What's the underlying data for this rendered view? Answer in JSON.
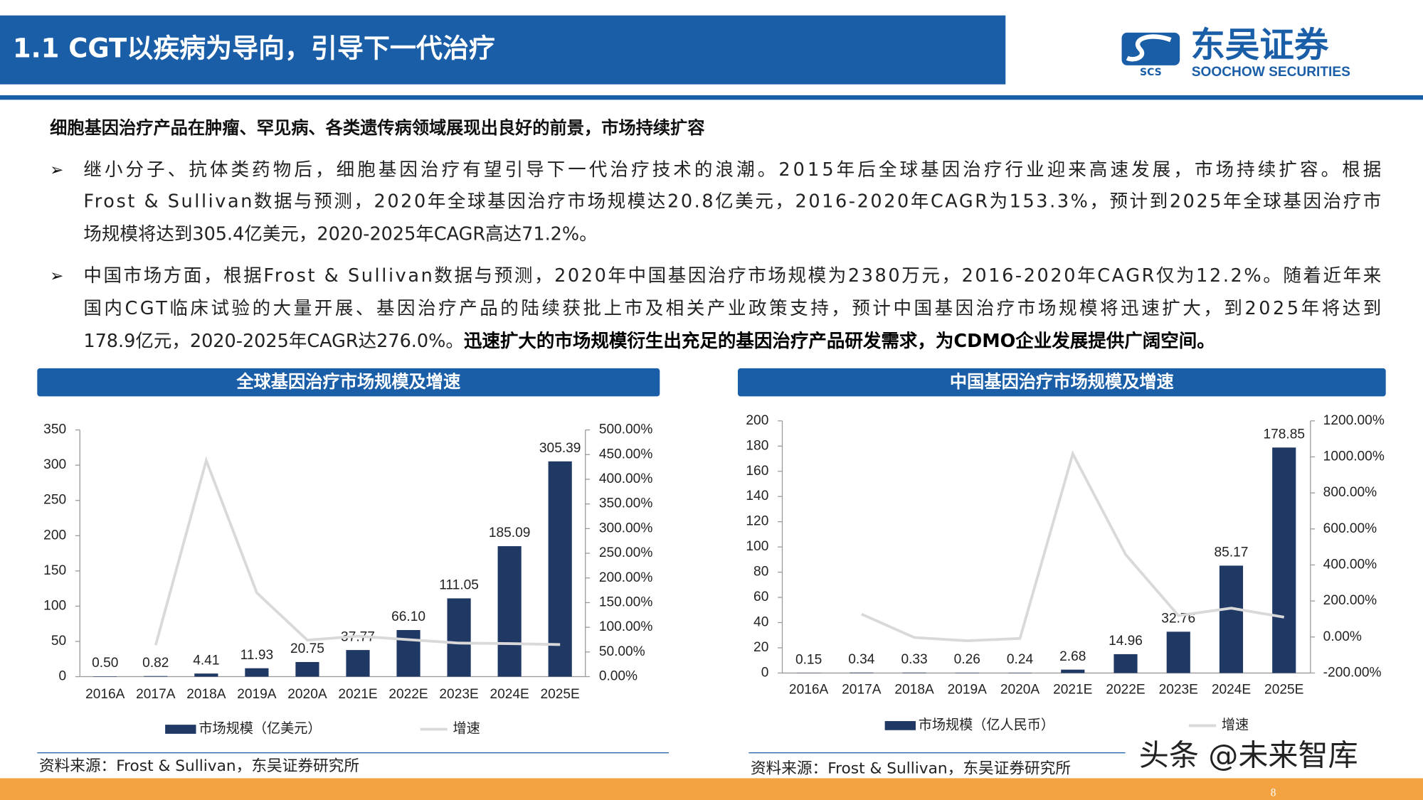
{
  "header": {
    "title": "1.1 CGT以疾病为导向，引导下一代治疗",
    "logo_icon_text": "SCS",
    "logo_name": "东吴证券",
    "logo_english": "SOOCHOW SECURITIES"
  },
  "body": {
    "heading": "细胞基因治疗产品在肿瘤、罕见病、各类遗传病领域展现出良好的前景，市场持续扩容",
    "bullets": [
      {
        "lines": [
          "继小分子、抗体类药物后，细胞基因治疗有望引导下一代治疗技术的浪潮。2015年后全球基因治疗行业迎来高速发展，市场持续扩容。根据",
          "Frost & Sullivan数据与预测，2020年全球基因治疗市场规模达20.8亿美元，2016-2020年CAGR为153.3%，预计到2025年全球基因治疗市",
          "场规模将达到305.4亿美元，2020-2025年CAGR高达71.2%。"
        ]
      },
      {
        "lines": [
          "中国市场方面，根据Frost & Sullivan数据与预测，2020年中国基因治疗市场规模为2380万元，2016-2020年CAGR仅为12.2%。随着近年来",
          "国内CGT临床试验的大量开展、基因治疗产品的陆续获批上市及相关产业政策支持，预计中国基因治疗市场规模将迅速扩大，到2025年将达到",
          "178.9亿元，2020-2025年CAGR达276.0%。"
        ],
        "emphasis": "迅速扩大的市场规模衍生出充足的基因治疗产品研发需求，为CDMO企业发展提供广阔空间。"
      }
    ]
  },
  "chart_data": [
    {
      "type": "combo",
      "title": "全球基因治疗市场规模及增速",
      "categories": [
        "2016A",
        "2017A",
        "2018A",
        "2019A",
        "2020A",
        "2021E",
        "2022E",
        "2023E",
        "2024E",
        "2025E"
      ],
      "series": [
        {
          "name": "市场规模（亿美元）",
          "type": "bar",
          "color": "#1f3864",
          "values": [
            0.5,
            0.82,
            4.41,
            11.93,
            20.75,
            37.77,
            66.1,
            111.05,
            185.09,
            305.39
          ],
          "value_labels": [
            "0.50",
            "0.82",
            "4.41",
            "11.93",
            "20.75",
            "37.77",
            "66.10",
            "111.05",
            "185.09",
            "305.39"
          ]
        },
        {
          "name": "增速",
          "type": "line",
          "axis": "y2",
          "color": "#d9d9d9",
          "values": [
            null,
            64,
            438,
            170,
            74,
            82,
            75,
            68,
            67,
            65
          ]
        }
      ],
      "ylim": [
        0,
        350
      ],
      "yticks": [
        0,
        50,
        100,
        150,
        200,
        250,
        300,
        350
      ],
      "y2lim": [
        0,
        500
      ],
      "y2ticks": [
        {
          "value": 0,
          "label": "0.00%"
        },
        {
          "value": 50,
          "label": "50.00%"
        },
        {
          "value": 100,
          "label": "100.00%"
        },
        {
          "value": 150,
          "label": "150.00%"
        },
        {
          "value": 200,
          "label": "200.00%"
        },
        {
          "value": 250,
          "label": "250.00%"
        },
        {
          "value": 300,
          "label": "300.00%"
        },
        {
          "value": 350,
          "label": "350.00%"
        },
        {
          "value": 400,
          "label": "400.00%"
        },
        {
          "value": 450,
          "label": "450.00%"
        },
        {
          "value": 500,
          "label": "500.00%"
        }
      ],
      "grid": false,
      "source": "资料来源：Frost & Sullivan，东吴证券研究所"
    },
    {
      "type": "combo",
      "title": "中国基因治疗市场规模及增速",
      "categories": [
        "2016A",
        "2017A",
        "2018A",
        "2019A",
        "2020A",
        "2021E",
        "2022E",
        "2023E",
        "2024E",
        "2025E"
      ],
      "series": [
        {
          "name": "市场规模（亿人民币）",
          "type": "bar",
          "color": "#1f3864",
          "values": [
            0.15,
            0.34,
            0.33,
            0.26,
            0.24,
            2.68,
            14.96,
            32.76,
            85.17,
            178.85
          ],
          "value_labels": [
            "0.15",
            "0.34",
            "0.33",
            "0.26",
            "0.24",
            "2.68",
            "14.96",
            "32.76",
            "85.17",
            "178.85"
          ]
        },
        {
          "name": "增速",
          "type": "line",
          "axis": "y2",
          "color": "#d9d9d9",
          "values": [
            null,
            127,
            -3,
            -21,
            -8,
            1017,
            458,
            119,
            160,
            110
          ]
        }
      ],
      "ylim": [
        0,
        200
      ],
      "yticks": [
        0,
        20,
        40,
        60,
        80,
        100,
        120,
        140,
        160,
        180,
        200
      ],
      "y2lim": [
        -200,
        1200
      ],
      "y2ticks": [
        {
          "value": -200,
          "label": "-200.00%"
        },
        {
          "value": 0,
          "label": "0.00%"
        },
        {
          "value": 200,
          "label": "200.00%"
        },
        {
          "value": 400,
          "label": "400.00%"
        },
        {
          "value": 600,
          "label": "600.00%"
        },
        {
          "value": 800,
          "label": "800.00%"
        },
        {
          "value": 1000,
          "label": "1000.00%"
        },
        {
          "value": 1200,
          "label": "1200.00%"
        }
      ],
      "grid": false,
      "source": "资料来源：Frost & Sullivan，东吴证券研究所"
    }
  ],
  "watermark": "头条 @未来智库",
  "page_number": "8"
}
